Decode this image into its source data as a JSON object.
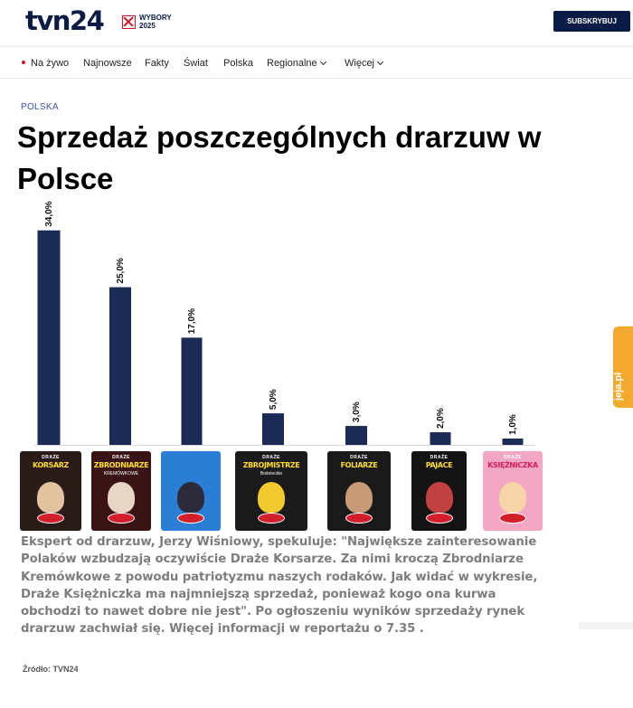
{
  "header": {
    "logo": "tvn24",
    "wybory_line1": "WYBORY",
    "wybory_line2": "2025",
    "subscribe_label": "SUBSKRYBUJ"
  },
  "nav": {
    "items": [
      "Na żywo",
      "Najnowsze",
      "Fakty",
      "Świat",
      "Polska",
      "Regionalne",
      "Więcej"
    ]
  },
  "article": {
    "section": "POLSKA",
    "headline": "Sprzedaż poszczególnych drarzuw w Polsce",
    "body": "Ekspert od drarzuw, Jerzy Wiśniowy, spekuluje: \"Największe zainteresowanie Polaków wzbudzają oczywiście Draże Korsarze. Za nimi kroczą Zbrodniarze Kremówkowe z powodu patriotyzmu naszych rodaków. Jak widać w wykresie, Draże Księżniczka ma najmniejszą sprzedaż, ponieważ kogo ona kurwa obchodzi to nawet dobre nie jest\". Po ogłoszeniu wyników sprzedaży rynek drarzuw zachwiał się. Więcej informacji w reportażu o 7.35 .",
    "source": "Źródło: TVN24"
  },
  "side_widget": {
    "label": "jeja.pl"
  },
  "products": [
    {
      "top": "DRAŻE",
      "name": "KORSARZ",
      "sub": "",
      "bg": "#2a1a18",
      "art": "#e2c3a0"
    },
    {
      "top": "DRAŻE",
      "name": "ZBRODNIARZE",
      "sub": "KREMÓWKOWE",
      "bg": "#3a1414",
      "art": "#e8d6c4"
    },
    {
      "top": "",
      "name": "",
      "sub": "",
      "bg": "#2a7fd4",
      "art": "#2a2a3a"
    },
    {
      "top": "DRAŻE",
      "name": "ZBROJMISTRZE",
      "sub": "Bośnieckie",
      "bg": "#1b1b1b",
      "art": "#f2c92c"
    },
    {
      "top": "DRAŻE",
      "name": "FOLIARZE",
      "sub": "",
      "bg": "#1a1a1a",
      "art": "#c89a78"
    },
    {
      "top": "DRAŻE",
      "name": "PAJACE",
      "sub": "",
      "bg": "#141414",
      "art": "#c24040"
    },
    {
      "top": "DRAŻE",
      "name": "KSIĘŻNICZKA",
      "sub": "",
      "bg": "#f3a7c4",
      "art": "#f7d3a8"
    }
  ],
  "chart_data": {
    "type": "bar",
    "categories": [
      "Korsarze",
      "Zbrodniarze Kremówkowe",
      "",
      "Zbrojmistrze Bośnieckie",
      "Foliarze",
      "Pajace",
      "Księżniczka"
    ],
    "values": [
      34.0,
      25.0,
      17.0,
      5.0,
      3.0,
      2.0,
      1.0
    ],
    "value_labels": [
      "34,0%",
      "25,0%",
      "17,0%",
      "5,0%",
      "3,0%",
      "2,0%",
      "1,0%"
    ],
    "bar_color": "#1c2b55",
    "title": "",
    "xlabel": "",
    "ylabel": "",
    "ylim": [
      0,
      36
    ],
    "grid": false,
    "legend": "none"
  }
}
